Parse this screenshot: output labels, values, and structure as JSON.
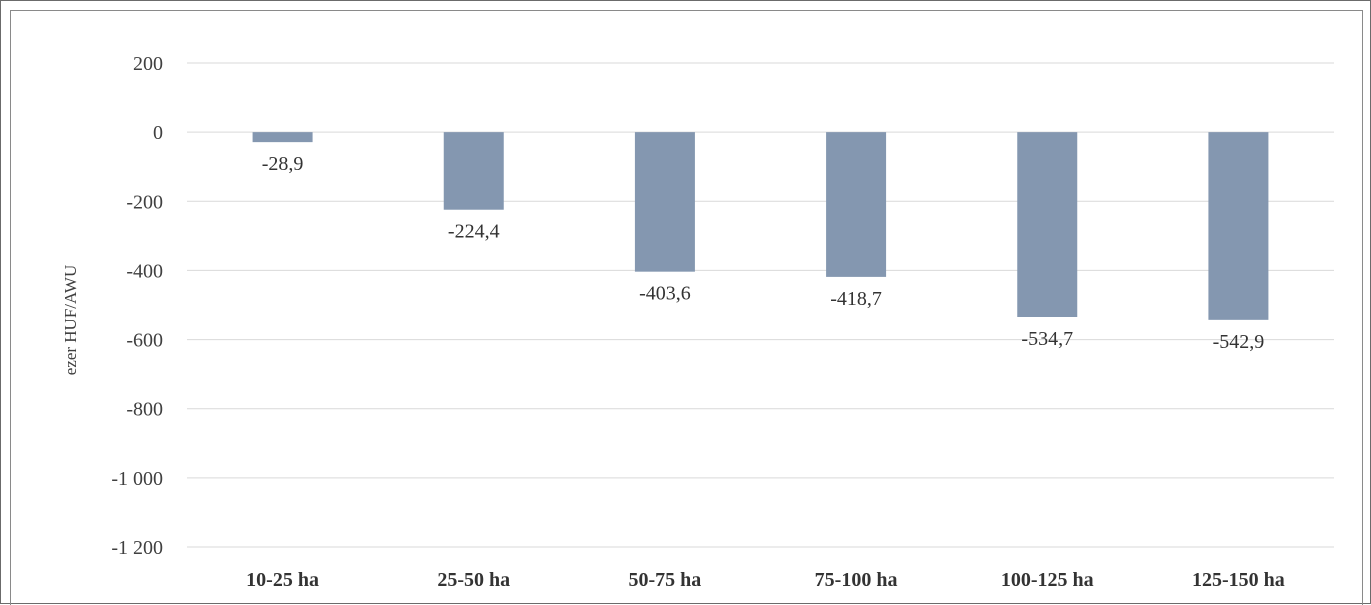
{
  "chart_data": {
    "type": "bar",
    "title": "",
    "xlabel": "",
    "ylabel": "ezer HUF/AWU",
    "categories": [
      "10-25 ha",
      "25-50 ha",
      "50-75 ha",
      "75-100 ha",
      "100-125 ha",
      "125-150 ha"
    ],
    "values": [
      -28.9,
      -224.4,
      -403.6,
      -418.7,
      -534.7,
      -542.9
    ],
    "data_labels": [
      "-28,9",
      "-224,4",
      "-403,6",
      "-418,7",
      "-534,7",
      "-542,9"
    ],
    "ylim": [
      -1200,
      200
    ],
    "yticks": [
      200,
      0,
      -200,
      -400,
      -600,
      -800,
      -1000,
      -1200
    ],
    "ytick_labels": [
      "200",
      "0",
      "-200",
      "-400",
      "-600",
      "-800",
      "-1 000",
      "-1 200"
    ],
    "grid": true,
    "legend": "none",
    "colors": {
      "bar": "#8497b0",
      "grid": "#d9d9d9",
      "zero_line": "#d9d9d9"
    }
  }
}
